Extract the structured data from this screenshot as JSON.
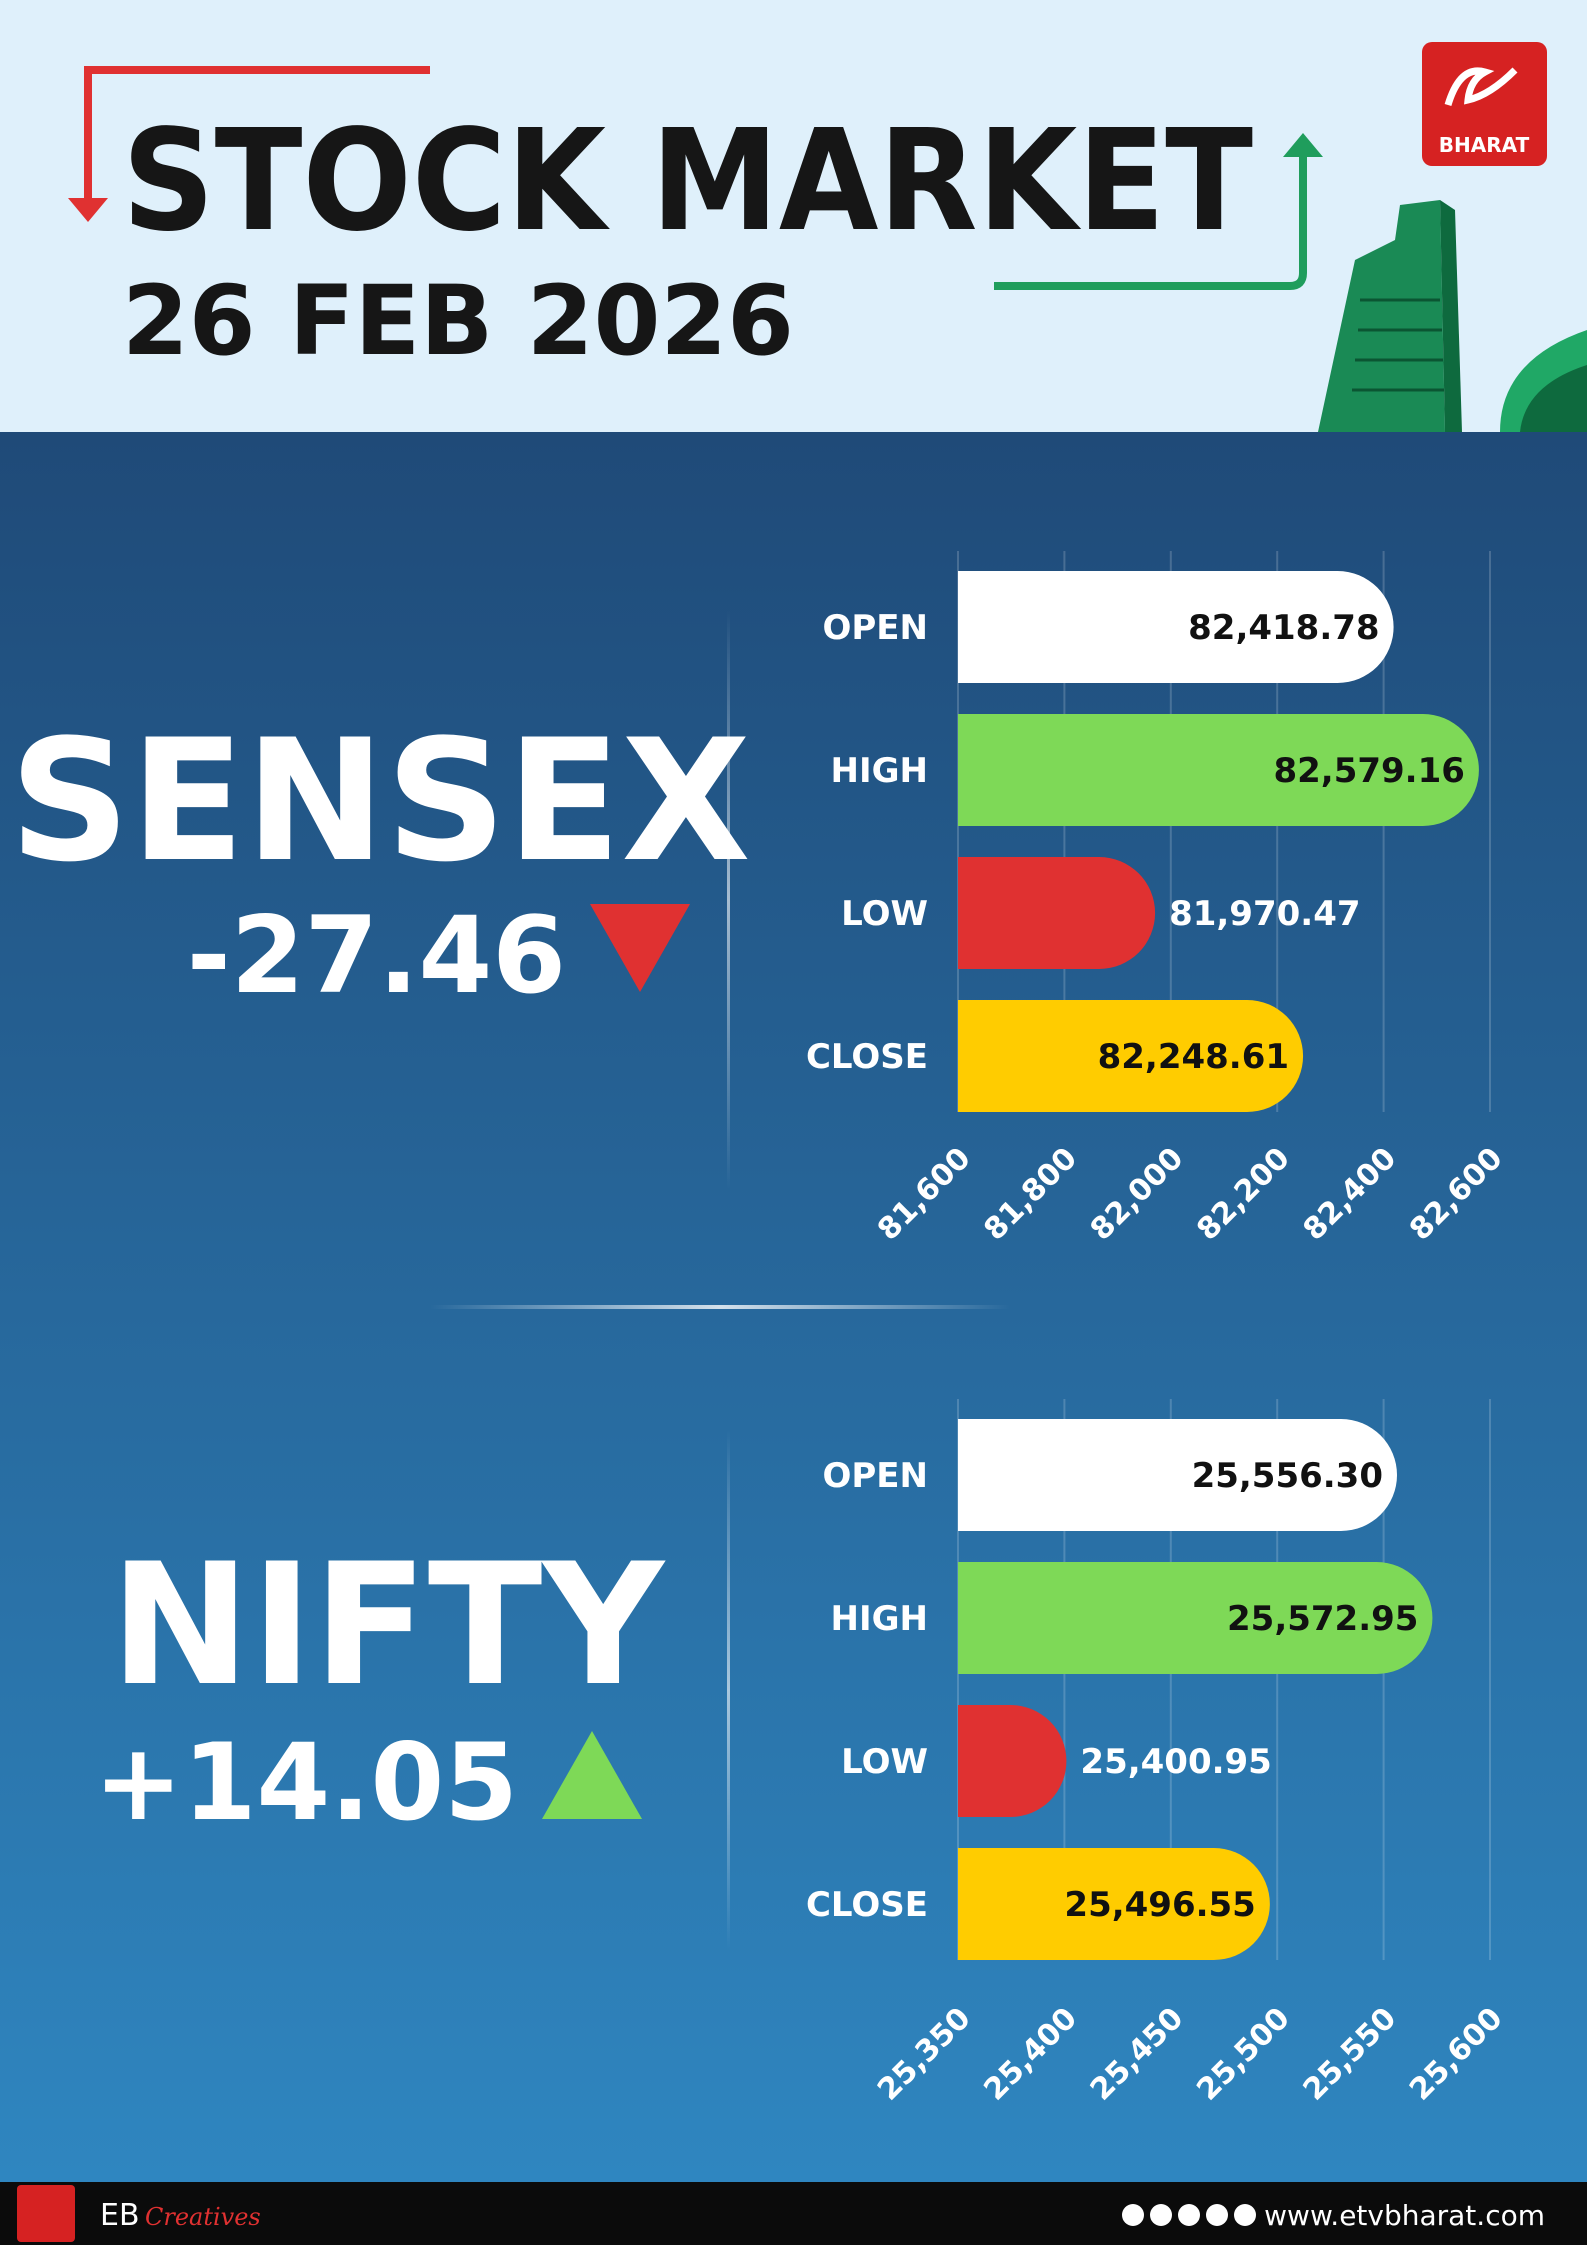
{
  "header": {
    "title": "STOCK MARKET",
    "date": "26 FEB 2026",
    "brand": "BHARAT"
  },
  "chart_data": [
    {
      "type": "bar",
      "orientation": "horizontal",
      "title": "SENSEX",
      "change": "-27.46",
      "trend": "down",
      "trend_color": "#e03131",
      "categories": [
        "OPEN",
        "HIGH",
        "LOW",
        "CLOSE"
      ],
      "values": [
        82418.78,
        82579.16,
        81970.47,
        82248.61
      ],
      "value_labels": [
        "82,418.78",
        "82,579.16",
        "81,970.47",
        "82,248.61"
      ],
      "colors": [
        "#ffffff",
        "#7ed957",
        "#e03131",
        "#ffcc00"
      ],
      "xlim": [
        81600,
        82600
      ],
      "xticks": [
        {
          "value": 81600,
          "label": "81,600"
        },
        {
          "value": 81800,
          "label": "81,800"
        },
        {
          "value": 82000,
          "label": "82,000"
        },
        {
          "value": 82200,
          "label": "82,200"
        },
        {
          "value": 82400,
          "label": "82,400"
        },
        {
          "value": 82600,
          "label": "82,600"
        }
      ],
      "grid": true
    },
    {
      "type": "bar",
      "orientation": "horizontal",
      "title": "NIFTY",
      "change": "+14.05",
      "trend": "up",
      "trend_color": "#7ed957",
      "categories": [
        "OPEN",
        "HIGH",
        "LOW",
        "CLOSE"
      ],
      "values": [
        25556.3,
        25572.95,
        25400.95,
        25496.55
      ],
      "value_labels": [
        "25,556.30",
        "25,572.95",
        "25,400.95",
        "25,496.55"
      ],
      "colors": [
        "#ffffff",
        "#7ed957",
        "#e03131",
        "#ffcc00"
      ],
      "xlim": [
        25350,
        25600
      ],
      "xticks": [
        {
          "value": 25350,
          "label": "25,350"
        },
        {
          "value": 25400,
          "label": "25,400"
        },
        {
          "value": 25450,
          "label": "25,450"
        },
        {
          "value": 25500,
          "label": "25,500"
        },
        {
          "value": 25550,
          "label": "25,550"
        },
        {
          "value": 25600,
          "label": "25,600"
        }
      ],
      "grid": true
    }
  ],
  "footer": {
    "brand": "EB",
    "tagline": "Creatives",
    "website": "www.etvbharat.com"
  }
}
